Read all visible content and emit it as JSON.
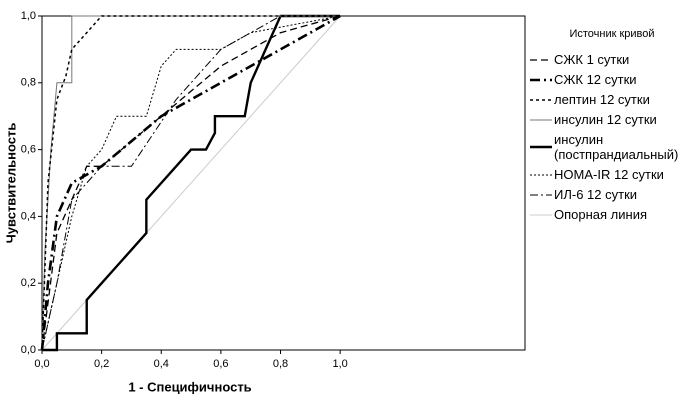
{
  "chart_data": {
    "type": "line",
    "x_label": "1 - Специфичность",
    "y_label": "Чувствительность",
    "legend_title": "Источник кривой",
    "xlim": [
      0,
      1.62
    ],
    "ylim": [
      0,
      1
    ],
    "xticks": [
      {
        "value": 0,
        "label": "0,0"
      },
      {
        "value": 0.2,
        "label": "0,2"
      },
      {
        "value": 0.4,
        "label": "0,4"
      },
      {
        "value": 0.6,
        "label": "0,6"
      },
      {
        "value": 0.8,
        "label": "0,8"
      },
      {
        "value": 1,
        "label": "1,0"
      }
    ],
    "yticks": [
      {
        "value": 0,
        "label": "0,0"
      },
      {
        "value": 0.2,
        "label": "0,2"
      },
      {
        "value": 0.4,
        "label": "0,4"
      },
      {
        "value": 0.6,
        "label": "0,6"
      },
      {
        "value": 0.8,
        "label": "0,8"
      },
      {
        "value": 1,
        "label": "1,0"
      }
    ],
    "legend": "right",
    "series": [
      {
        "name": "СЖК 1 сутки",
        "color": "#000",
        "width": 1.3,
        "dash": "7 4",
        "x": [
          0,
          0.05,
          0.1,
          0.15,
          0.2,
          0.4,
          0.6,
          0.8,
          1
        ],
        "values": [
          0,
          0.35,
          0.45,
          0.55,
          0.55,
          0.7,
          0.85,
          0.95,
          1
        ]
      },
      {
        "name": "СЖК 12 сутки",
        "color": "#000",
        "width": 2.6,
        "dash": "10 4 2 4",
        "x": [
          0,
          0.02,
          0.05,
          0.1,
          0.2,
          0.4,
          0.7,
          1
        ],
        "values": [
          0,
          0.2,
          0.4,
          0.5,
          0.55,
          0.7,
          0.85,
          1
        ]
      },
      {
        "name": "лептин 12 сутки",
        "color": "#000",
        "width": 1.5,
        "dash": "3 3",
        "x": [
          0,
          0.02,
          0.05,
          0.08,
          0.1,
          0.2,
          1
        ],
        "values": [
          0,
          0.5,
          0.75,
          0.82,
          0.9,
          1,
          1
        ]
      },
      {
        "name": "инсулин 12 сутки",
        "color": "#777",
        "width": 1,
        "dash": "none",
        "x": [
          0,
          0.01,
          0.03,
          0.05,
          0.1,
          0.1,
          1
        ],
        "values": [
          0,
          0.3,
          0.6,
          0.8,
          0.8,
          1,
          1
        ]
      },
      {
        "name": "инсулин (постпрандиальный)",
        "color": "#000",
        "width": 2.4,
        "dash": "none",
        "x": [
          0,
          0.05,
          0.05,
          0.15,
          0.15,
          0.2,
          0.25,
          0.3,
          0.35,
          0.35,
          0.4,
          0.45,
          0.5,
          0.55,
          0.58,
          0.58,
          0.68,
          0.7,
          0.75,
          0.8,
          1
        ],
        "values": [
          0,
          0,
          0.05,
          0.05,
          0.15,
          0.2,
          0.25,
          0.3,
          0.35,
          0.45,
          0.5,
          0.55,
          0.6,
          0.6,
          0.65,
          0.7,
          0.7,
          0.8,
          0.9,
          1,
          1
        ]
      },
      {
        "name": "HOMA-IR 12 сутки",
        "color": "#000",
        "width": 1,
        "dash": "2 2",
        "x": [
          0,
          0.05,
          0.1,
          0.15,
          0.2,
          0.25,
          0.35,
          0.4,
          0.45,
          0.6,
          0.7,
          1
        ],
        "values": [
          0,
          0.2,
          0.4,
          0.55,
          0.6,
          0.7,
          0.7,
          0.85,
          0.9,
          0.9,
          0.95,
          1
        ]
      },
      {
        "name": "ИЛ-6 12 сутки",
        "color": "#000",
        "width": 1,
        "dash": "8 3 2 3",
        "x": [
          0,
          0.05,
          0.1,
          0.15,
          0.2,
          0.3,
          0.45,
          0.6,
          0.7,
          0.8,
          1
        ],
        "values": [
          0,
          0.2,
          0.45,
          0.5,
          0.55,
          0.55,
          0.75,
          0.9,
          0.95,
          1,
          1
        ]
      },
      {
        "name": "Опорная линия",
        "color": "#ccc",
        "width": 1,
        "dash": "none",
        "x": [
          0,
          1
        ],
        "values": [
          0,
          1
        ]
      }
    ]
  }
}
